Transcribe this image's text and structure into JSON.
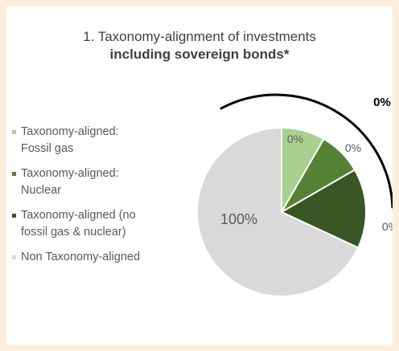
{
  "chart_data": {
    "type": "pie",
    "title": "1. Taxonomy-alignment of investments",
    "subtitle": "including sovereign bonds*",
    "categories": [
      "Taxonomy-aligned: Fossil gas",
      "Taxonomy-aligned: Nuclear",
      "Taxonomy-aligned (no fossil gas & nuclear)",
      "Non Taxonomy-aligned"
    ],
    "legend": [
      [
        "Taxonomy-aligned:",
        "Fossil gas"
      ],
      [
        "Taxonomy-aligned:",
        "Nuclear"
      ],
      [
        "Taxonomy-aligned (no",
        "fossil gas & nuclear)"
      ],
      [
        "Non Taxonomy-aligned"
      ]
    ],
    "values": [
      0,
      0,
      0,
      100
    ],
    "data_labels": [
      "0%",
      "0%",
      "0%",
      "100%"
    ],
    "aligned_total_label": "0%",
    "colors": [
      "#a9d08e",
      "#548235",
      "#375623",
      "#d9d9d9"
    ],
    "legend_position": "left"
  }
}
